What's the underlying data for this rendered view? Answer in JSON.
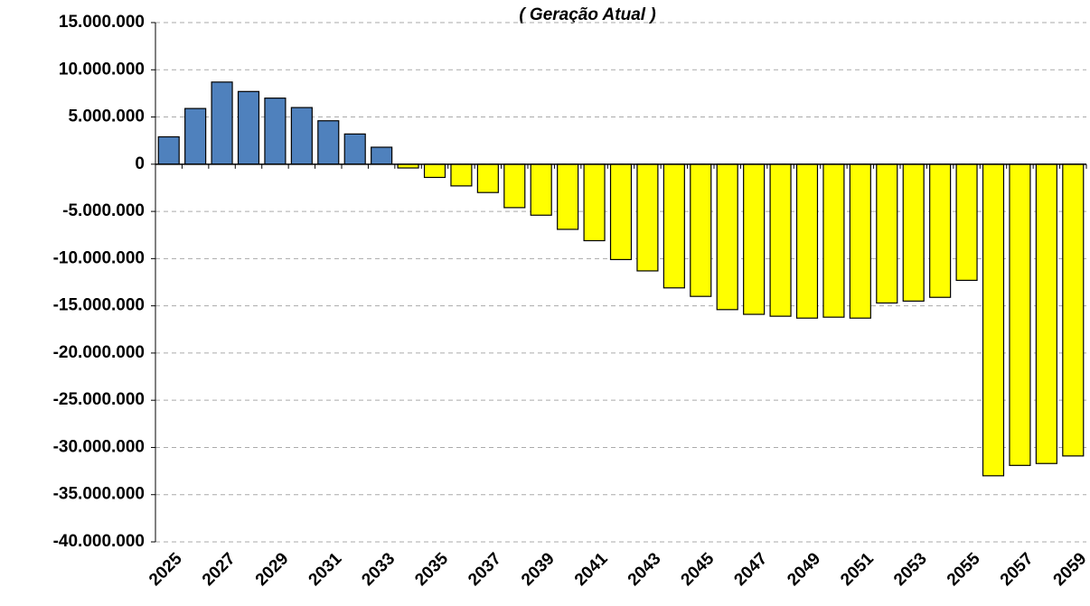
{
  "chart_data": {
    "type": "bar",
    "title": "( Geração Atual )",
    "categories": [
      "2025",
      null,
      "2027",
      null,
      "2029",
      null,
      "2031",
      null,
      "2033",
      null,
      "2035",
      null,
      "2037",
      null,
      "2039",
      null,
      "2041",
      null,
      "2043",
      null,
      "2045",
      null,
      "2047",
      null,
      "2049",
      null,
      "2051",
      null,
      "2053",
      null,
      "2055",
      null,
      "2057",
      null,
      "2059"
    ],
    "values": [
      2900000,
      5900000,
      8700000,
      7700000,
      7000000,
      6000000,
      4600000,
      3200000,
      1800000,
      -400000,
      -1400000,
      -2300000,
      -3000000,
      -4600000,
      -5400000,
      -6900000,
      -8100000,
      -10100000,
      -11300000,
      -13100000,
      -14000000,
      -15400000,
      -15900000,
      -16100000,
      -16300000,
      -16200000,
      -16300000,
      -14700000,
      -14500000,
      -14100000,
      -12300000,
      -33000000,
      -31900000,
      -31700000,
      -30900000
    ],
    "color_positive": "#4f81bd",
    "color_negative": "#ffff00",
    "ylim": [
      -40000000,
      15000000
    ],
    "yticks": [
      {
        "value": -40000000,
        "label": "-40.000.000"
      },
      {
        "value": -35000000,
        "label": "-35.000.000"
      },
      {
        "value": -30000000,
        "label": "-30.000.000"
      },
      {
        "value": -25000000,
        "label": "-25.000.000"
      },
      {
        "value": -20000000,
        "label": "-20.000.000"
      },
      {
        "value": -15000000,
        "label": "-15.000.000"
      },
      {
        "value": -10000000,
        "label": "-10.000.000"
      },
      {
        "value": -5000000,
        "label": "-5.000.000"
      },
      0,
      {
        "value": 5000000,
        "label": "5.000.000"
      },
      {
        "value": 10000000,
        "label": "10.000.000"
      },
      {
        "value": 15000000,
        "label": "15.000.000"
      }
    ],
    "grid": true
  }
}
